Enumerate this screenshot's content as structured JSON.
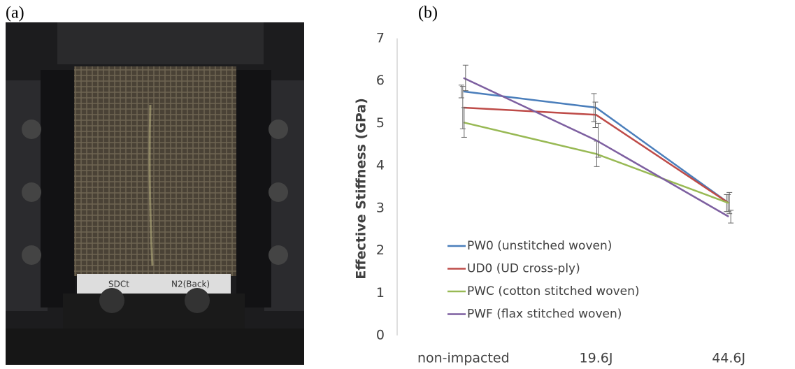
{
  "panels": {
    "a": "(a)",
    "b": "(b)"
  },
  "photo_texts": [
    "SDCt",
    "N2(Back)"
  ],
  "chart_data": {
    "type": "line",
    "y_label": "Effective Stiffness (GPa)",
    "categories": [
      "non-impacted",
      "19.6J",
      "44.6J"
    ],
    "series": [
      {
        "name": "PW0 (unstitched woven)",
        "color": "#4a7ebb",
        "values": [
          5.75,
          5.37,
          3.12
        ],
        "errors": [
          0.15,
          0.33,
          0.2
        ]
      },
      {
        "name": "UD0 (UD cross-ply)",
        "color": "#be4b48",
        "values": [
          5.37,
          5.2,
          3.12
        ],
        "errors": [
          0.5,
          0.3,
          0.2
        ]
      },
      {
        "name": "PWC (cotton stitched woven)",
        "color": "#98b954",
        "values": [
          5.02,
          4.28,
          3.12
        ],
        "errors": [
          0.35,
          0.3,
          0.25
        ]
      },
      {
        "name": "PWF (flax stitched woven)",
        "color": "#7d5fa0",
        "values": [
          6.07,
          4.6,
          2.8
        ],
        "errors": [
          0.3,
          0.4,
          0.15
        ]
      }
    ],
    "ylim": [
      0,
      7
    ],
    "yticks": [
      0,
      1,
      2,
      3,
      4,
      5,
      6,
      7
    ],
    "grid": false,
    "legend": "lower-left"
  }
}
